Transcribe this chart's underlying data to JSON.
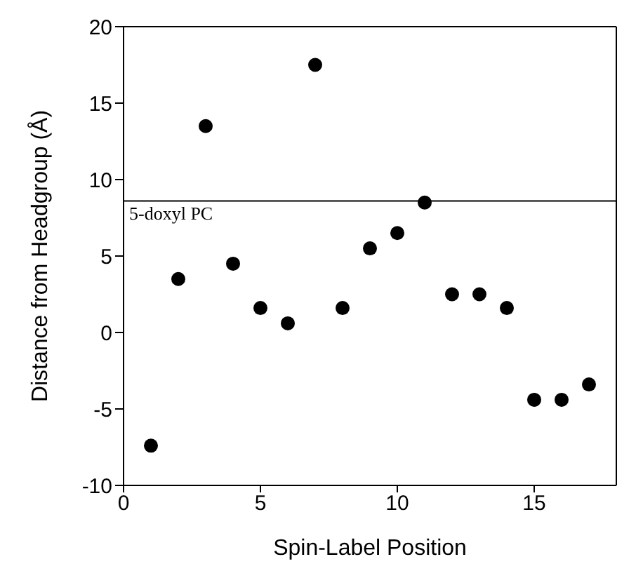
{
  "chart_data": {
    "type": "scatter",
    "xlabel": "Spin-Label  Position",
    "ylabel": "Distance from Headgroup (Å)",
    "x": [
      1,
      2,
      3,
      4,
      5,
      6,
      7,
      8,
      9,
      10,
      11,
      12,
      13,
      14,
      15,
      16,
      17
    ],
    "values": [
      -7.4,
      3.5,
      13.5,
      4.5,
      1.6,
      0.6,
      17.5,
      1.6,
      5.5,
      6.5,
      8.5,
      2.5,
      2.5,
      1.6,
      -4.4,
      -4.4,
      -3.4
    ],
    "color": "#000000",
    "marker": "circle",
    "xlim": [
      0,
      18
    ],
    "xticks": [
      0,
      5,
      10,
      15
    ],
    "ylim": [
      -10,
      20
    ],
    "yticks": [
      -10,
      -5,
      0,
      5,
      10,
      15,
      20
    ],
    "ref_lines": [
      {
        "axis": "y",
        "value": 8.6,
        "label": "5-doxyl PC",
        "color": "#000000"
      }
    ],
    "legend": false
  }
}
